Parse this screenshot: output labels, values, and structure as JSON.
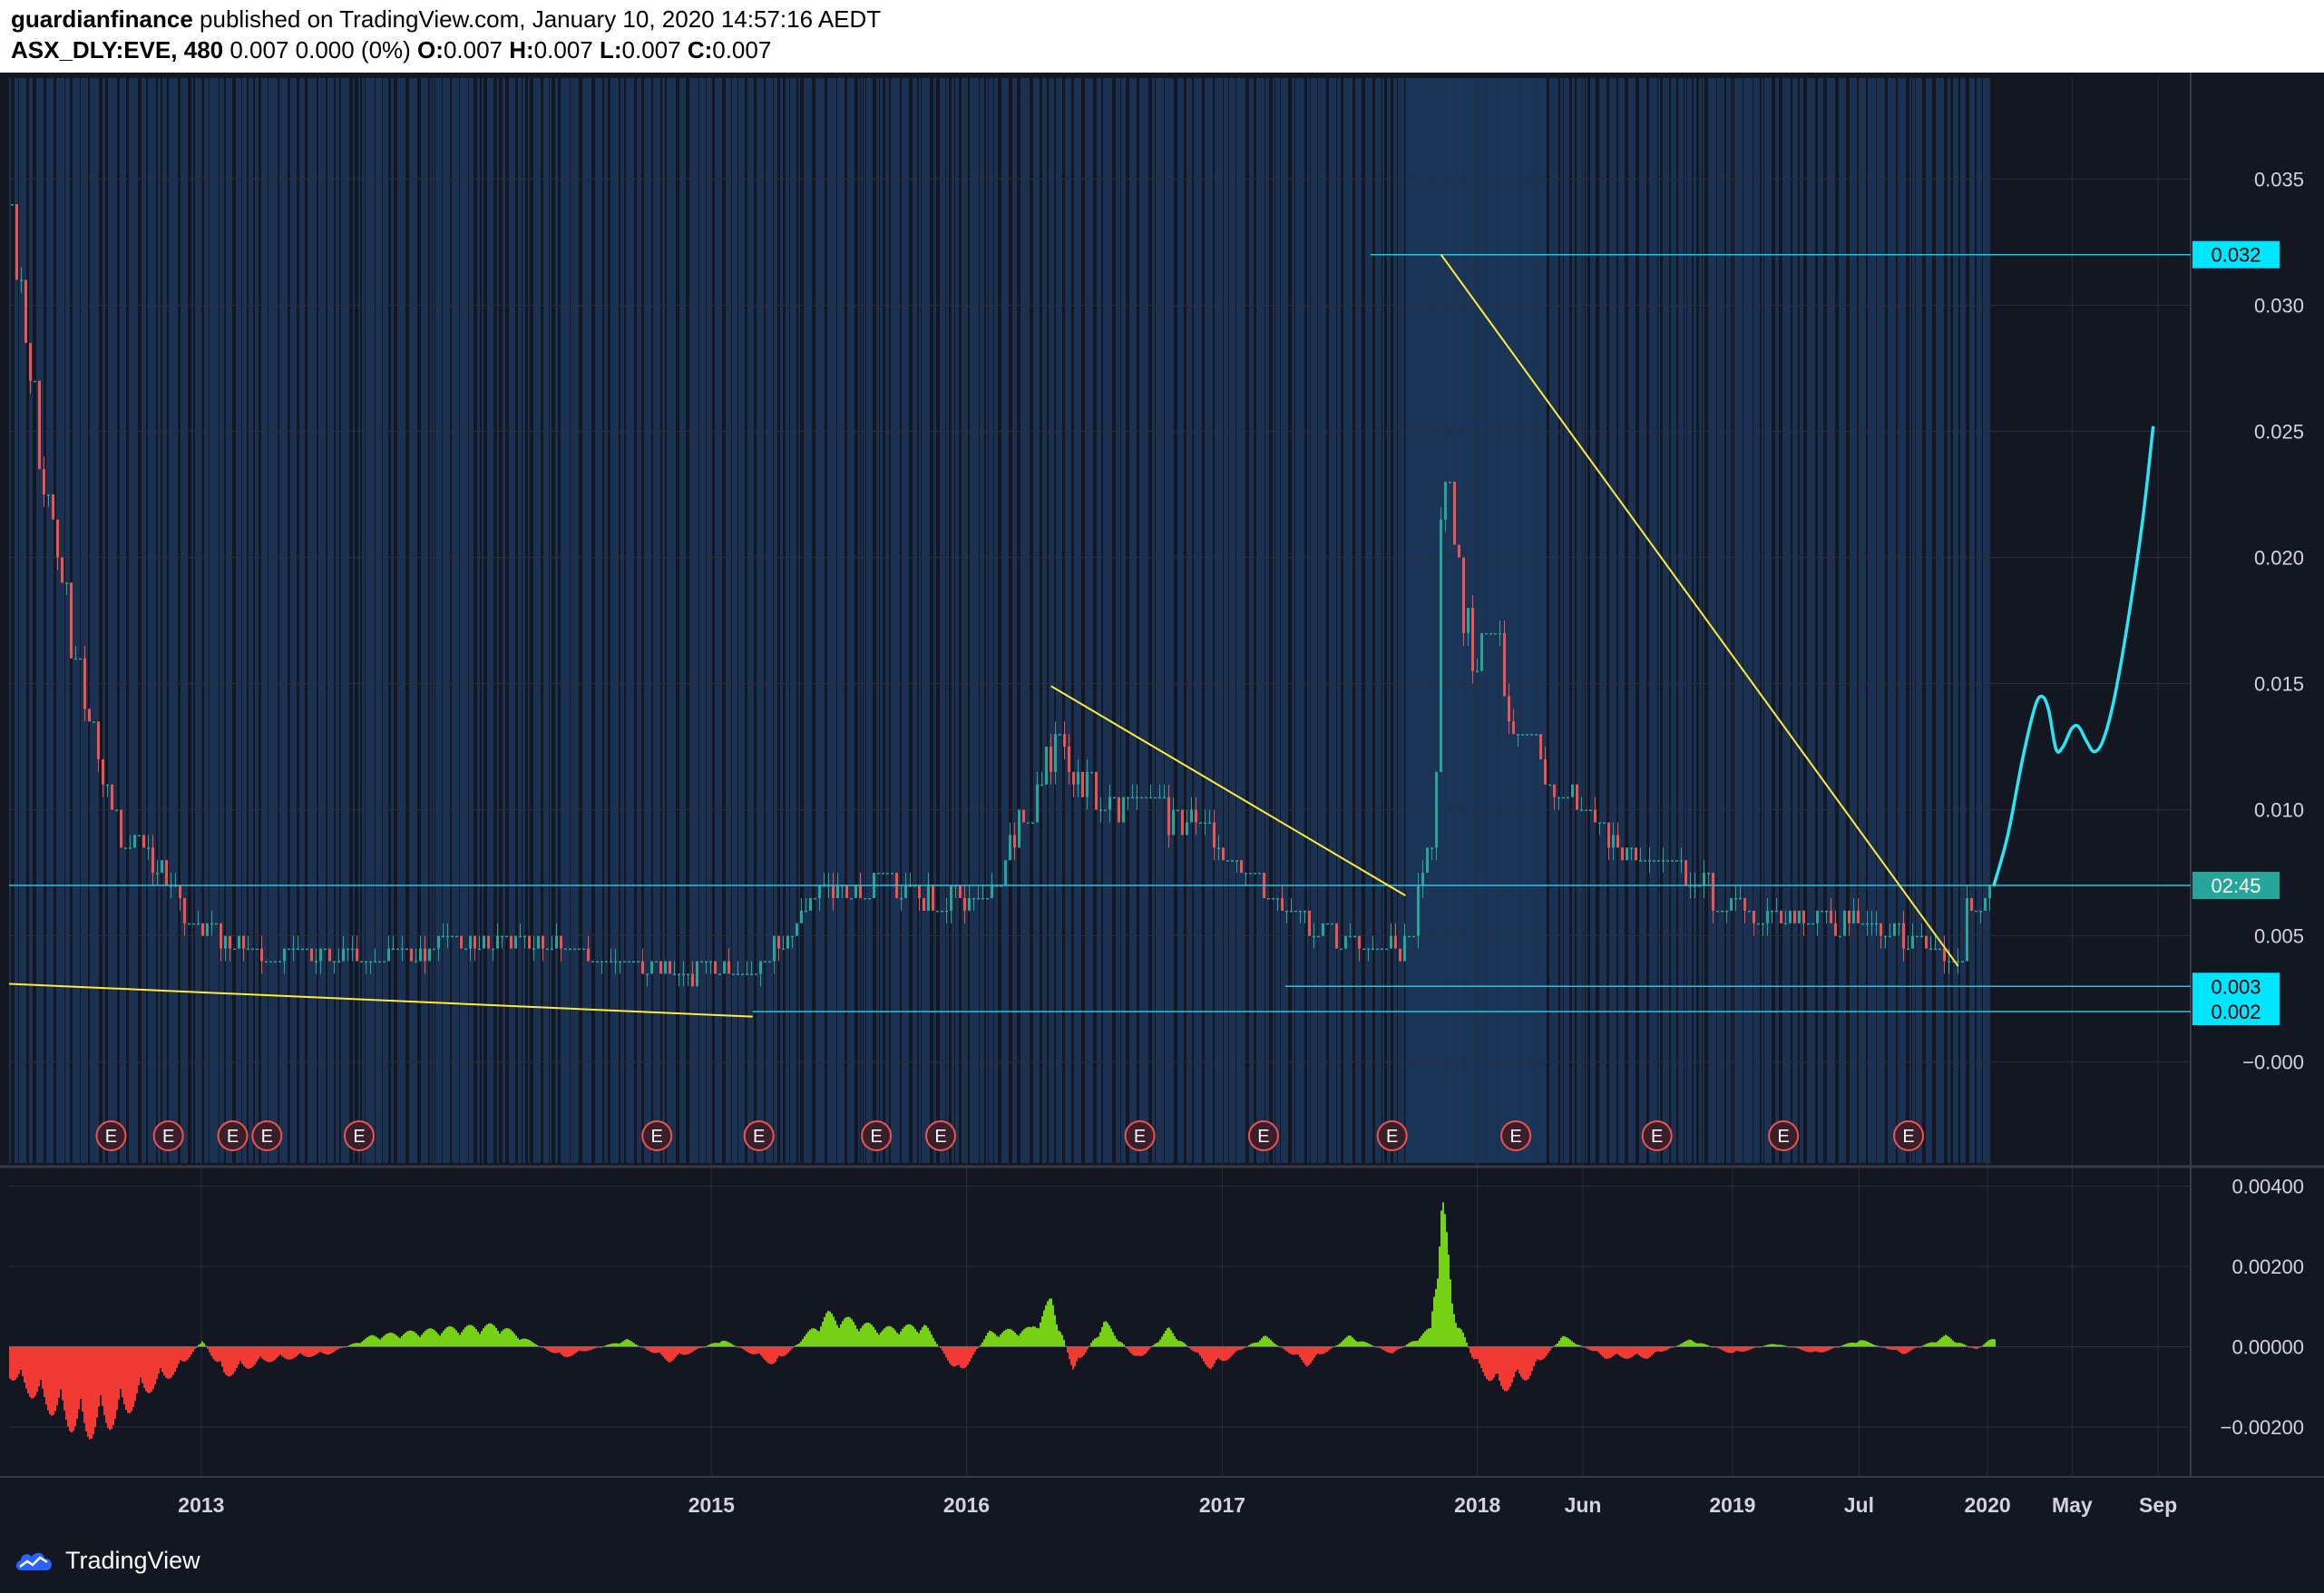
{
  "header": {
    "publisher": "guardianfinance",
    "published_text": " published on TradingView.com, January 10, 2020 14:57:16 AEDT",
    "symbol": "ASX_DLY:EVE, 480",
    "quote": " 0.007 0.000 (0%) ",
    "ohlc": [
      {
        "k": "O:",
        "v": "0.007"
      },
      {
        "k": "H:",
        "v": "0.007"
      },
      {
        "k": "L:",
        "v": "0.007"
      },
      {
        "k": "C:",
        "v": "0.007"
      }
    ]
  },
  "brand": {
    "name": "TradingView",
    "icon": "tradingview-cloud-icon"
  },
  "colors": {
    "background": "#131722",
    "shade": "#1c3659",
    "up": "#26a69a",
    "down": "#ef5350",
    "trendline": "#ffeb3b",
    "level": "#26c6da",
    "projection": "#26e8f5",
    "osc_pos": "#76d115",
    "osc_neg": "#f23a34",
    "earnings": "#ef5350"
  },
  "chart_data": [
    {
      "type": "candlestick",
      "title": "ASX_DLY:EVE, 480",
      "ylim": [
        -0.004,
        0.039
      ],
      "y_ticks": [
        "0.035",
        "0.030",
        "0.025",
        "0.020",
        "0.015",
        "0.010",
        "0.005",
        "−0.000"
      ],
      "y_tick_values": [
        0.035,
        0.03,
        0.025,
        0.02,
        0.015,
        0.01,
        0.005,
        0.0
      ],
      "x_ticks": [
        "2013",
        "2015",
        "2016",
        "2017",
        "2018",
        "Jun",
        "2019",
        "Jul",
        "2020",
        "May",
        "Sep"
      ],
      "x_tick_dates": [
        "2013-01-01",
        "2015-01-01",
        "2016-01-01",
        "2017-01-01",
        "2018-01-01",
        "2018-06-01",
        "2019-01-01",
        "2019-07-01",
        "2020-01-01",
        "2020-05-01",
        "2020-09-01"
      ],
      "x_range": [
        "2012-04-01",
        "2020-10-15"
      ],
      "last_bar_date": "2020-01-10",
      "price_labels": [
        {
          "text": "0.032",
          "value": 0.032,
          "kind": "level"
        },
        {
          "text": "02:45",
          "value": 0.007,
          "kind": "countdown"
        },
        {
          "text": "0.003",
          "value": 0.003,
          "kind": "level"
        },
        {
          "text": "0.002",
          "value": 0.002,
          "kind": "level"
        }
      ],
      "horizontal_levels": [
        {
          "value": 0.032,
          "from": "2017-08-01"
        },
        {
          "value": 0.007,
          "from": "2012-04-01"
        },
        {
          "value": 0.003,
          "from": "2017-04-01"
        },
        {
          "value": 0.002,
          "from": "2015-03-01"
        }
      ],
      "trendlines": [
        {
          "from": [
            "2012-04-01",
            0.0031
          ],
          "to": [
            "2015-03-01",
            0.0018
          ]
        },
        {
          "from": [
            "2016-05-01",
            0.0149
          ],
          "to": [
            "2017-09-20",
            0.0066
          ]
        },
        {
          "from": [
            "2017-11-10",
            0.032
          ],
          "to": [
            "2019-11-20",
            0.0038
          ]
        }
      ],
      "projection": [
        [
          "2020-01-10",
          0.007
        ],
        [
          "2020-01-30",
          0.009
        ],
        [
          "2020-02-20",
          0.012
        ],
        [
          "2020-03-08",
          0.014
        ],
        [
          "2020-03-18",
          0.0145
        ],
        [
          "2020-03-28",
          0.014
        ],
        [
          "2020-04-08",
          0.0124
        ],
        [
          "2020-04-18",
          0.0125
        ],
        [
          "2020-04-30",
          0.0132
        ],
        [
          "2020-05-10",
          0.0133
        ],
        [
          "2020-05-22",
          0.0127
        ],
        [
          "2020-06-02",
          0.0123
        ],
        [
          "2020-06-15",
          0.0128
        ],
        [
          "2020-07-01",
          0.0145
        ],
        [
          "2020-07-20",
          0.0175
        ],
        [
          "2020-08-10",
          0.0215
        ],
        [
          "2020-08-25",
          0.0252
        ]
      ],
      "price_path": [
        [
          "2012-04-01",
          0.034
        ],
        [
          "2012-05-01",
          0.027
        ],
        [
          "2012-06-01",
          0.021
        ],
        [
          "2012-07-01",
          0.016
        ],
        [
          "2012-08-01",
          0.012
        ],
        [
          "2012-09-01",
          0.009
        ],
        [
          "2012-10-01",
          0.009
        ],
        [
          "2012-11-01",
          0.008
        ],
        [
          "2012-12-01",
          0.006
        ],
        [
          "2013-02-01",
          0.005
        ],
        [
          "2013-04-01",
          0.004
        ],
        [
          "2013-06-01",
          0.0045
        ],
        [
          "2013-09-01",
          0.004
        ],
        [
          "2013-12-01",
          0.0045
        ],
        [
          "2014-03-01",
          0.005
        ],
        [
          "2014-06-01",
          0.0045
        ],
        [
          "2014-09-01",
          0.004
        ],
        [
          "2014-12-01",
          0.0035
        ],
        [
          "2015-03-01",
          0.0035
        ],
        [
          "2015-06-01",
          0.0065
        ],
        [
          "2015-09-01",
          0.007
        ],
        [
          "2015-12-01",
          0.0065
        ],
        [
          "2016-02-01",
          0.0065
        ],
        [
          "2016-03-15",
          0.0095
        ],
        [
          "2016-05-01",
          0.0125
        ],
        [
          "2016-06-15",
          0.011
        ],
        [
          "2016-08-01",
          0.01
        ],
        [
          "2016-10-01",
          0.01
        ],
        [
          "2016-12-01",
          0.009
        ],
        [
          "2017-02-01",
          0.0075
        ],
        [
          "2017-04-01",
          0.006
        ],
        [
          "2017-06-01",
          0.005
        ],
        [
          "2017-08-01",
          0.0045
        ],
        [
          "2017-09-20",
          0.0045
        ],
        [
          "2017-10-15",
          0.0075
        ],
        [
          "2017-11-01",
          0.01
        ],
        [
          "2017-11-10",
          0.025
        ],
        [
          "2017-11-20",
          0.021
        ],
        [
          "2017-12-10",
          0.018
        ],
        [
          "2017-12-25",
          0.016
        ],
        [
          "2018-01-20",
          0.018
        ],
        [
          "2018-02-10",
          0.014
        ],
        [
          "2018-03-10",
          0.012
        ],
        [
          "2018-04-15",
          0.011
        ],
        [
          "2018-05-20",
          0.0105
        ],
        [
          "2018-06-20",
          0.01
        ],
        [
          "2018-07-20",
          0.0085
        ],
        [
          "2018-08-20",
          0.0082
        ],
        [
          "2018-10-01",
          0.0078
        ],
        [
          "2018-11-15",
          0.007
        ],
        [
          "2018-12-20",
          0.0062
        ],
        [
          "2019-02-01",
          0.006
        ],
        [
          "2019-03-20",
          0.0058
        ],
        [
          "2019-05-01",
          0.0057
        ],
        [
          "2019-06-15",
          0.0055
        ],
        [
          "2019-07-20",
          0.0053
        ],
        [
          "2019-08-25",
          0.005
        ],
        [
          "2019-09-25",
          0.0048
        ],
        [
          "2019-10-25",
          0.0042
        ],
        [
          "2019-11-20",
          0.004
        ],
        [
          "2019-12-01",
          0.006
        ],
        [
          "2020-01-10",
          0.007
        ]
      ],
      "earnings_markers": [
        {
          "date": "2012-08-25",
          "label": "E"
        },
        {
          "date": "2012-11-15",
          "label": "E"
        },
        {
          "date": "2013-02-15",
          "label": "E"
        },
        {
          "date": "2013-04-05",
          "label": "E"
        },
        {
          "date": "2013-08-15",
          "label": "E"
        },
        {
          "date": "2014-10-15",
          "label": "E"
        },
        {
          "date": "2015-03-10",
          "label": "E"
        },
        {
          "date": "2015-08-25",
          "label": "E"
        },
        {
          "date": "2015-11-25",
          "label": "E"
        },
        {
          "date": "2016-09-05",
          "label": "E"
        },
        {
          "date": "2017-03-01",
          "label": "E"
        },
        {
          "date": "2017-09-01",
          "label": "E"
        },
        {
          "date": "2018-02-25",
          "label": "E"
        },
        {
          "date": "2018-09-15",
          "label": "E"
        },
        {
          "date": "2019-03-15",
          "label": "E"
        },
        {
          "date": "2019-09-10",
          "label": "E"
        }
      ]
    },
    {
      "type": "area",
      "title": "",
      "ylim": [
        -0.0032,
        0.0044
      ],
      "y_ticks": [
        "0.00400",
        "0.00200",
        "0.00000",
        "−0.00200"
      ],
      "y_tick_values": [
        0.004,
        0.002,
        0.0,
        -0.002
      ],
      "series": [
        {
          "values_path": [
            [
              "2012-04-01",
              -0.0008
            ],
            [
              "2012-05-15",
              -0.0015
            ],
            [
              "2012-07-15",
              -0.0024
            ],
            [
              "2012-09-01",
              -0.002
            ],
            [
              "2012-10-15",
              -0.0012
            ],
            [
              "2012-12-01",
              -0.0006
            ],
            [
              "2013-01-01",
              0.0002
            ],
            [
              "2013-02-01",
              -0.0008
            ],
            [
              "2013-04-01",
              -0.0004
            ],
            [
              "2013-07-01",
              -0.0002
            ],
            [
              "2013-09-01",
              0.0003
            ],
            [
              "2013-12-15",
              0.0005
            ],
            [
              "2014-03-01",
              0.0006
            ],
            [
              "2014-06-01",
              -0.0003
            ],
            [
              "2014-09-01",
              0.0002
            ],
            [
              "2014-11-01",
              -0.0004
            ],
            [
              "2015-01-15",
              0.0002
            ],
            [
              "2015-04-01",
              -0.0005
            ],
            [
              "2015-06-15",
              0.0009
            ],
            [
              "2015-09-01",
              0.0005
            ],
            [
              "2015-11-01",
              0.0006
            ],
            [
              "2015-12-20",
              -0.0008
            ],
            [
              "2016-02-01",
              0.0004
            ],
            [
              "2016-04-01",
              0.0005
            ],
            [
              "2016-05-01",
              0.0013
            ],
            [
              "2016-06-01",
              -0.0007
            ],
            [
              "2016-07-15",
              0.0007
            ],
            [
              "2016-09-01",
              -0.0004
            ],
            [
              "2016-10-15",
              0.0005
            ],
            [
              "2016-12-15",
              -0.0006
            ],
            [
              "2017-03-01",
              0.0003
            ],
            [
              "2017-05-01",
              -0.0005
            ],
            [
              "2017-07-01",
              0.0003
            ],
            [
              "2017-09-01",
              -0.0002
            ],
            [
              "2017-10-25",
              0.0005
            ],
            [
              "2017-11-10",
              0.0043
            ],
            [
              "2017-11-25",
              0.0012
            ],
            [
              "2017-12-25",
              -0.0004
            ],
            [
              "2018-02-01",
              -0.0012
            ],
            [
              "2018-03-15",
              -0.0008
            ],
            [
              "2018-05-01",
              0.0003
            ],
            [
              "2018-07-01",
              -0.0003
            ],
            [
              "2018-09-01",
              -0.0003
            ],
            [
              "2018-11-01",
              0.0002
            ],
            [
              "2019-01-01",
              -0.0002
            ],
            [
              "2019-03-01",
              0.0001
            ],
            [
              "2019-05-01",
              -0.0002
            ],
            [
              "2019-07-01",
              0.0002
            ],
            [
              "2019-09-01",
              -0.0002
            ],
            [
              "2019-11-01",
              0.0003
            ],
            [
              "2019-12-15",
              -0.0001
            ],
            [
              "2020-01-10",
              0.0003
            ]
          ]
        }
      ]
    }
  ]
}
